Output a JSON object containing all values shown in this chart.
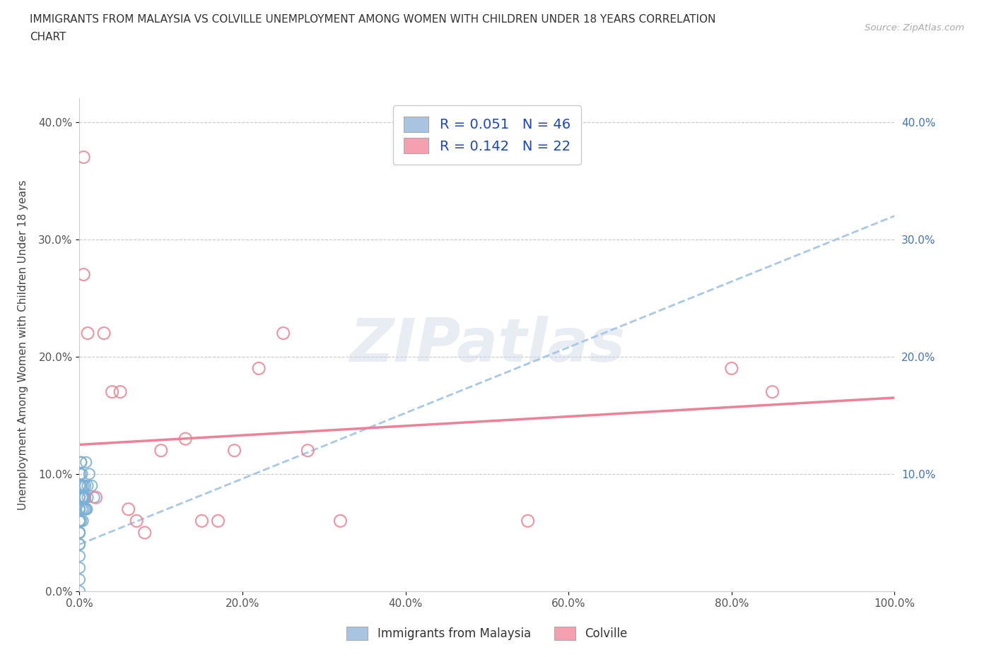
{
  "title_line1": "IMMIGRANTS FROM MALAYSIA VS COLVILLE UNEMPLOYMENT AMONG WOMEN WITH CHILDREN UNDER 18 YEARS CORRELATION",
  "title_line2": "CHART",
  "source": "Source: ZipAtlas.com",
  "ylabel": "Unemployment Among Women with Children Under 18 years",
  "xmin": 0.0,
  "xmax": 1.0,
  "ymin": 0.0,
  "ymax": 0.42,
  "x_ticks": [
    0.0,
    0.2,
    0.4,
    0.6,
    0.8,
    1.0
  ],
  "x_tick_labels": [
    "0.0%",
    "20.0%",
    "40.0%",
    "60.0%",
    "80.0%",
    "100.0%"
  ],
  "y_ticks": [
    0.0,
    0.1,
    0.2,
    0.3,
    0.4
  ],
  "y_tick_labels_left": [
    "0.0%",
    "10.0%",
    "20.0%",
    "30.0%",
    "40.0%"
  ],
  "y_tick_labels_right": [
    "",
    "10.0%",
    "20.0%",
    "30.0%",
    "40.0%"
  ],
  "legend_label_blue": "Immigrants from Malaysia",
  "legend_label_pink": "Colville",
  "R_blue": 0.051,
  "N_blue": 46,
  "R_pink": 0.142,
  "N_pink": 22,
  "blue_color": "#a8c4e0",
  "pink_color": "#f4a0b0",
  "blue_scatter_color": "#7bafd4",
  "pink_scatter_color": "#f08090",
  "trendline_blue_color": "#a8c8e8",
  "trendline_pink_color": "#f08098",
  "right_axis_color": "#4472c4",
  "watermark_text": "ZIPatlas",
  "blue_x": [
    0.0,
    0.0,
    0.0,
    0.0,
    0.0,
    0.0,
    0.0,
    0.0,
    0.0,
    0.0,
    0.0,
    0.0,
    0.0,
    0.0,
    0.0,
    0.0,
    0.0,
    0.0,
    0.0,
    0.0,
    0.001,
    0.001,
    0.002,
    0.002,
    0.002,
    0.003,
    0.003,
    0.003,
    0.003,
    0.004,
    0.004,
    0.005,
    0.005,
    0.005,
    0.006,
    0.007,
    0.007,
    0.007,
    0.008,
    0.008,
    0.009,
    0.01,
    0.01,
    0.012,
    0.015,
    0.018
  ],
  "blue_y": [
    0.0,
    0.01,
    0.02,
    0.03,
    0.04,
    0.04,
    0.05,
    0.05,
    0.05,
    0.06,
    0.06,
    0.06,
    0.06,
    0.07,
    0.07,
    0.07,
    0.07,
    0.08,
    0.08,
    0.09,
    0.09,
    0.1,
    0.11,
    0.11,
    0.06,
    0.07,
    0.08,
    0.09,
    0.1,
    0.06,
    0.08,
    0.07,
    0.08,
    0.09,
    0.08,
    0.07,
    0.08,
    0.09,
    0.07,
    0.11,
    0.07,
    0.08,
    0.09,
    0.1,
    0.09,
    0.08
  ],
  "pink_x": [
    0.005,
    0.005,
    0.01,
    0.02,
    0.03,
    0.04,
    0.05,
    0.06,
    0.07,
    0.08,
    0.1,
    0.13,
    0.15,
    0.17,
    0.19,
    0.22,
    0.25,
    0.28,
    0.32,
    0.55,
    0.8,
    0.85
  ],
  "pink_y": [
    0.37,
    0.27,
    0.22,
    0.08,
    0.22,
    0.17,
    0.17,
    0.07,
    0.06,
    0.05,
    0.12,
    0.13,
    0.06,
    0.06,
    0.12,
    0.19,
    0.22,
    0.12,
    0.06,
    0.06,
    0.19,
    0.17
  ],
  "trendline_blue_x0": 0.0,
  "trendline_blue_x1": 1.0,
  "trendline_blue_y0": 0.04,
  "trendline_blue_y1": 0.32,
  "trendline_pink_x0": 0.0,
  "trendline_pink_x1": 1.0,
  "trendline_pink_y0": 0.125,
  "trendline_pink_y1": 0.165
}
